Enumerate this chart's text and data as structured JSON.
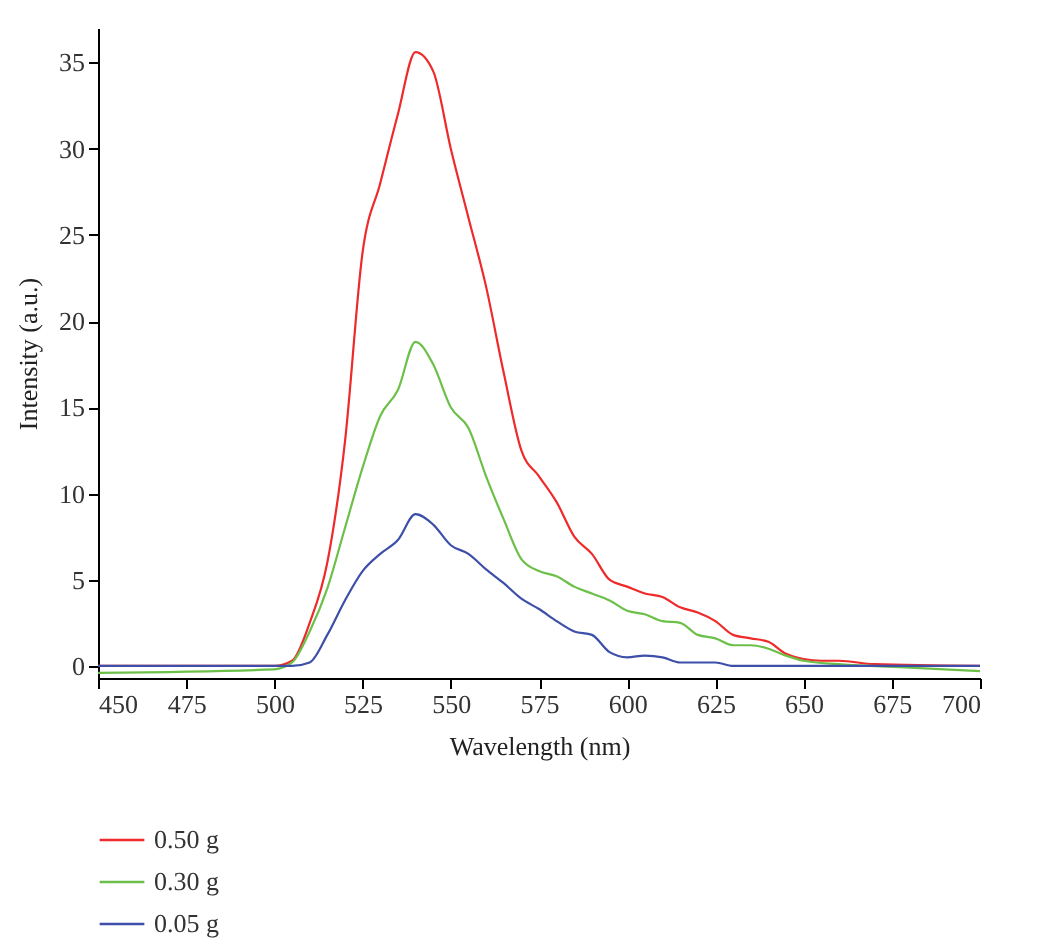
{
  "chart_data": {
    "type": "line",
    "xlabel": "Wavelength (nm)",
    "ylabel": "Intensity (a.u.)",
    "xlim": [
      450,
      700
    ],
    "ylim": [
      -0.7,
      37
    ],
    "xticks": [
      450,
      475,
      500,
      525,
      550,
      575,
      600,
      625,
      650,
      675,
      700
    ],
    "yticks": [
      0,
      5,
      10,
      15,
      20,
      25,
      30,
      35
    ],
    "grid": false,
    "legend": "bottom",
    "marker": "none",
    "line_style": "solid",
    "series": [
      {
        "name": "0.50 g",
        "color": "#ee2a2a",
        "x": [
          450,
          500,
          505,
          510,
          515,
          520,
          525,
          530,
          535,
          540,
          545,
          550,
          555,
          560,
          565,
          570,
          575,
          580,
          585,
          590,
          595,
          600,
          605,
          610,
          615,
          620,
          625,
          630,
          635,
          640,
          645,
          650,
          655,
          660,
          670,
          700
        ],
        "values": [
          0,
          0,
          0.3,
          2.5,
          6,
          13,
          24,
          28,
          32,
          35.6,
          34.5,
          30,
          26,
          22,
          17,
          12.5,
          11,
          9.5,
          7.5,
          6.5,
          5,
          4.6,
          4.2,
          4,
          3.4,
          3.1,
          2.6,
          1.8,
          1.6,
          1.4,
          0.7,
          0.4,
          0.3,
          0.3,
          0.1,
          0
        ]
      },
      {
        "name": "0.30 g",
        "color": "#6cc04a",
        "x": [
          450,
          500,
          505,
          510,
          515,
          520,
          525,
          530,
          535,
          540,
          545,
          550,
          555,
          560,
          565,
          570,
          575,
          580,
          585,
          590,
          595,
          600,
          605,
          610,
          615,
          620,
          625,
          630,
          635,
          640,
          645,
          650,
          660,
          680,
          700
        ],
        "values": [
          -0.4,
          -0.2,
          0.2,
          2,
          4.5,
          8,
          11.5,
          14.5,
          16,
          18.8,
          17.5,
          15,
          13.8,
          11,
          8.5,
          6.2,
          5.5,
          5.2,
          4.6,
          4.2,
          3.8,
          3.2,
          3,
          2.6,
          2.5,
          1.8,
          1.6,
          1.2,
          1.2,
          1,
          0.6,
          0.3,
          0.1,
          -0.1,
          -0.3
        ]
      },
      {
        "name": "0.05 g",
        "color": "#3d4fa8",
        "x": [
          450,
          505,
          510,
          515,
          520,
          525,
          530,
          535,
          540,
          545,
          550,
          555,
          560,
          565,
          570,
          575,
          580,
          585,
          590,
          595,
          600,
          605,
          610,
          615,
          620,
          625,
          630,
          700
        ],
        "values": [
          0,
          0,
          0.2,
          1.8,
          3.8,
          5.5,
          6.5,
          7.3,
          8.8,
          8.2,
          7,
          6.5,
          5.6,
          4.8,
          3.9,
          3.3,
          2.6,
          2,
          1.8,
          0.8,
          0.5,
          0.6,
          0.5,
          0.2,
          0.2,
          0.2,
          0,
          0
        ]
      }
    ]
  }
}
